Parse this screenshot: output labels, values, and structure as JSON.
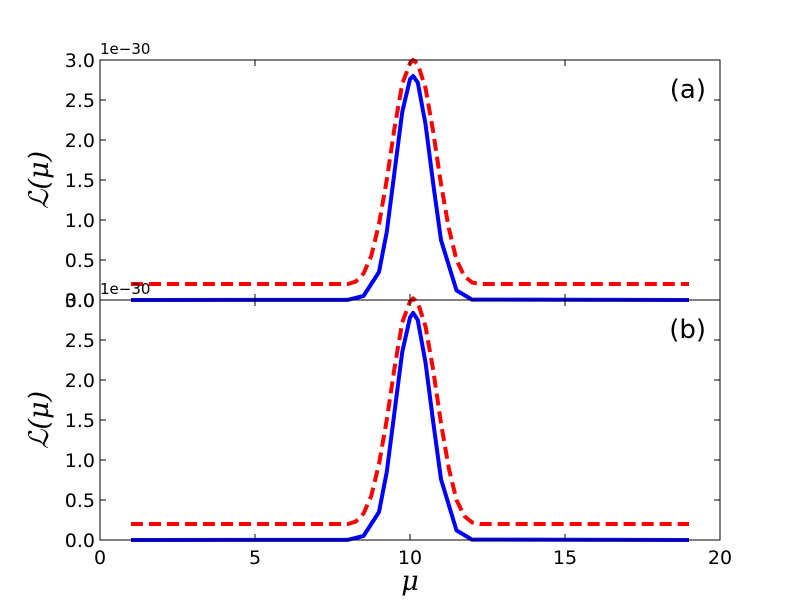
{
  "chart_data": [
    {
      "type": "line",
      "panel_label": "(a)",
      "ylabel": "ℒ(μ)",
      "xlabel": "",
      "offset_text": "1e−30",
      "xlim": [
        0,
        20
      ],
      "ylim": [
        0,
        3.0
      ],
      "xticks": [
        0,
        5,
        10,
        15,
        20
      ],
      "yticks": [
        0,
        0.5,
        1.0,
        1.5,
        2.0,
        2.5,
        3.0
      ],
      "ytick_labels": [
        "0.0",
        "0.5",
        "1.0",
        "1.5",
        "2.0",
        "2.5",
        "3.0"
      ],
      "grid": false,
      "series": [
        {
          "color": "#0000ff",
          "style": "solid",
          "x": [
            1,
            8,
            8.5,
            9,
            9.25,
            9.5,
            9.75,
            10,
            10.1,
            10.25,
            10.5,
            10.75,
            11,
            11.5,
            12,
            19
          ],
          "y": [
            0,
            0.002,
            0.05,
            0.35,
            0.85,
            1.6,
            2.35,
            2.76,
            2.8,
            2.72,
            2.2,
            1.45,
            0.75,
            0.12,
            0.005,
            0
          ]
        },
        {
          "color": "#ff0000",
          "style": "dashed",
          "x": [
            1,
            8,
            8.25,
            8.5,
            8.75,
            9,
            9.25,
            9.5,
            9.75,
            10,
            10.1,
            10.25,
            10.5,
            10.75,
            11,
            11.25,
            11.5,
            11.75,
            12,
            12.25,
            19
          ],
          "y": [
            0.2,
            0.2,
            0.23,
            0.33,
            0.55,
            0.95,
            1.5,
            2.15,
            2.7,
            2.96,
            3.0,
            2.95,
            2.65,
            2.1,
            1.45,
            0.9,
            0.5,
            0.3,
            0.22,
            0.2,
            0.2
          ]
        }
      ]
    },
    {
      "type": "line",
      "panel_label": "(b)",
      "ylabel": "ℒ(μ)",
      "xlabel": "μ",
      "offset_text": "1e−30",
      "xlim": [
        0,
        20
      ],
      "ylim": [
        0,
        3.0
      ],
      "xticks": [
        0,
        5,
        10,
        15,
        20
      ],
      "xtick_labels": [
        "0",
        "5",
        "10",
        "15",
        "20"
      ],
      "yticks": [
        0,
        0.5,
        1.0,
        1.5,
        2.0,
        2.5,
        3.0
      ],
      "ytick_labels": [
        "0.0",
        "0.5",
        "1.0",
        "1.5",
        "2.0",
        "2.5",
        "3.0"
      ],
      "grid": false,
      "series": [
        {
          "color": "#0000ff",
          "style": "solid",
          "x": [
            1,
            8,
            8.5,
            9,
            9.25,
            9.5,
            9.75,
            10,
            10.1,
            10.25,
            10.5,
            10.75,
            11,
            11.5,
            12,
            19
          ],
          "y": [
            0,
            0.002,
            0.05,
            0.35,
            0.85,
            1.6,
            2.35,
            2.78,
            2.84,
            2.75,
            2.22,
            1.47,
            0.76,
            0.12,
            0.005,
            0
          ]
        },
        {
          "color": "#ff0000",
          "style": "dashed",
          "x": [
            1,
            8,
            8.25,
            8.5,
            8.75,
            9,
            9.25,
            9.5,
            9.75,
            10,
            10.1,
            10.25,
            10.5,
            10.75,
            11,
            11.25,
            11.5,
            11.75,
            12,
            12.25,
            19
          ],
          "y": [
            0.2,
            0.2,
            0.23,
            0.33,
            0.55,
            0.95,
            1.5,
            2.15,
            2.72,
            2.98,
            3.02,
            2.97,
            2.67,
            2.12,
            1.46,
            0.9,
            0.5,
            0.3,
            0.22,
            0.2,
            0.2
          ]
        }
      ]
    }
  ]
}
